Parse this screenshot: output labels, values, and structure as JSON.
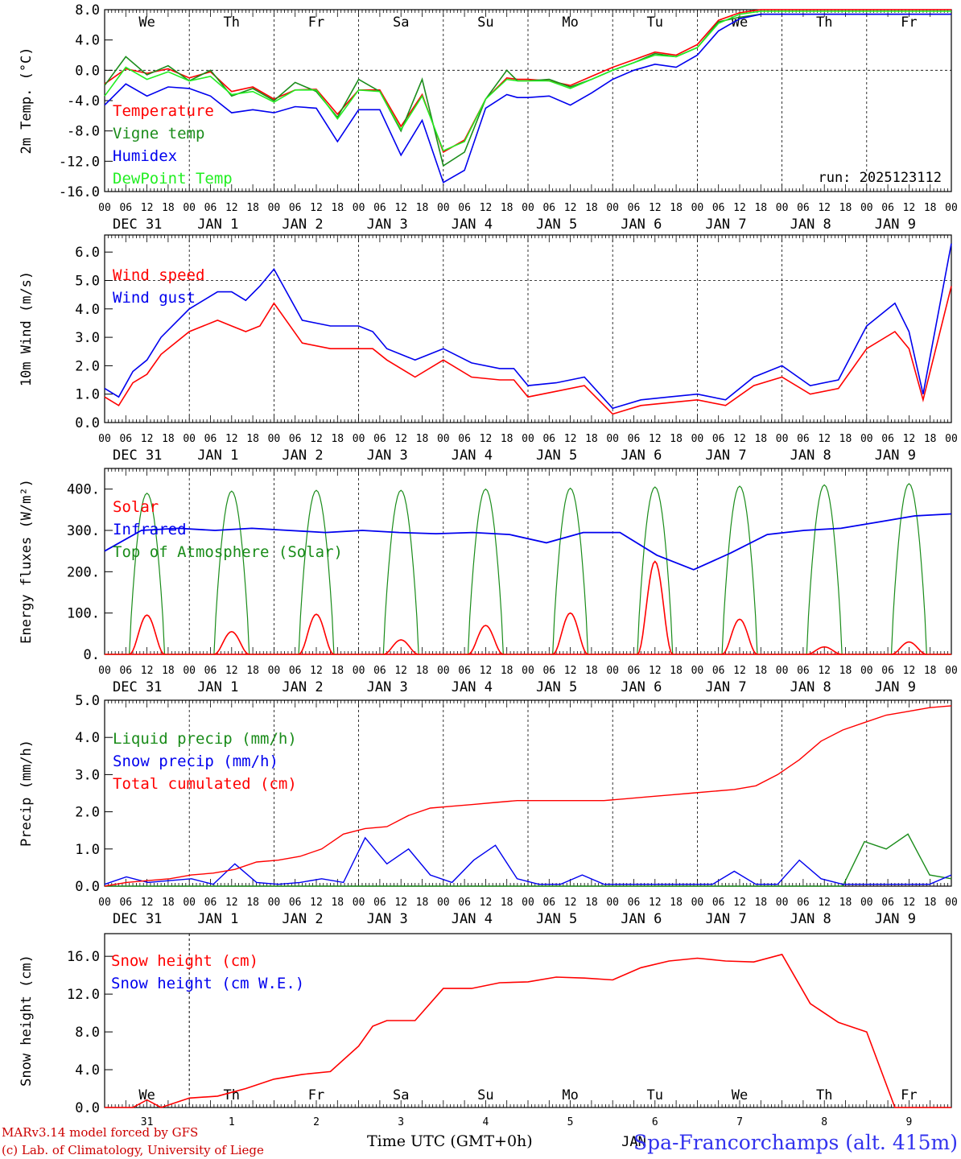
{
  "chart_data": [
    {
      "type": "line",
      "ylabel": "2m Temp. (°C)",
      "ylim": [
        -16,
        8
      ],
      "yticks": [
        "8.0",
        "4.0",
        "0.0",
        "-4.0",
        "-8.0",
        "-12.0",
        "-16.0"
      ],
      "ytick_values": [
        8,
        4,
        0,
        -4,
        -8,
        -12,
        -16
      ],
      "ref_line": 0,
      "day_names": [
        "We",
        "Th",
        "Fr",
        "Sa",
        "Su",
        "Mo",
        "Tu",
        "We",
        "Th",
        "Fr"
      ],
      "run_label": "run: 2025123112",
      "x_hours": [
        0,
        12,
        24,
        36,
        48,
        60,
        72,
        84,
        96,
        108,
        120,
        132,
        144,
        156,
        168,
        180,
        192,
        204,
        216,
        228,
        234
      ],
      "series": [
        {
          "name": "Temperature",
          "color": "#ff0000",
          "values": [
            -1.8,
            0.2,
            -0.4,
            0.2,
            -1.0,
            -0.2,
            -2.8,
            -2.2,
            -3.8,
            -2.6,
            -2.5,
            -5.8,
            -2.6,
            -2.6,
            -7.4,
            -3.2,
            -10.8,
            -9.2,
            -3.8,
            -1.0,
            -1.2
          ]
        },
        {
          "name": "Vigne temp",
          "color": "#1a8c1a",
          "values": [
            -2.0,
            1.8,
            -0.6,
            0.6,
            -1.4,
            0.0,
            -3.4,
            -2.4,
            -4.0,
            -1.6,
            -2.8,
            -6.2,
            -1.2,
            -2.8,
            -8.0,
            -1.2,
            -12.6,
            -10.8,
            -3.8,
            0.0,
            -1.4
          ]
        },
        {
          "name": "Humidex",
          "color": "#0000ee",
          "values": [
            -4.6,
            -1.8,
            -3.4,
            -2.2,
            -2.4,
            -3.4,
            -5.6,
            -5.2,
            -5.6,
            -4.8,
            -5.0,
            -9.4,
            -5.2,
            -5.2,
            -11.2,
            -6.6,
            -14.8,
            -13.2,
            -5.0,
            -3.2,
            -3.6
          ]
        },
        {
          "name": "DewPoint Temp",
          "color": "#22ee22",
          "values": [
            -3.4,
            0.4,
            -1.2,
            -0.2,
            -1.4,
            -0.8,
            -3.2,
            -2.8,
            -4.2,
            -2.6,
            -2.6,
            -6.4,
            -2.6,
            -2.8,
            -7.8,
            -3.4,
            -10.6,
            -9.4,
            -3.8,
            -1.2,
            -1.4
          ]
        }
      ],
      "x_tail_hours": [
        240,
        252,
        264,
        276,
        288,
        300,
        312,
        324,
        336,
        348,
        360,
        372,
        384,
        396,
        408,
        420,
        432,
        456,
        468,
        480
      ],
      "tail_series": [
        [
          -1.2,
          -1.4,
          -2.0,
          -0.8,
          0.4,
          1.4,
          2.4,
          2.0,
          3.4,
          6.6,
          7.6,
          8.0,
          8.0,
          8.0,
          8.0,
          8.0,
          8.0,
          8.0,
          8.0,
          8.0
        ],
        [
          -1.4,
          -1.2,
          -2.2,
          -1.2,
          0.0,
          1.0,
          2.2,
          1.8,
          3.0,
          6.4,
          7.0,
          7.4,
          7.4,
          7.4,
          7.4,
          7.4,
          7.4,
          7.4,
          7.4,
          7.4
        ],
        [
          -3.6,
          -3.4,
          -4.6,
          -3.0,
          -1.2,
          0.0,
          0.8,
          0.4,
          2.0,
          5.2,
          6.8,
          7.4,
          7.4,
          7.4,
          7.4,
          7.4,
          7.4,
          7.4,
          7.4,
          7.4
        ],
        [
          -1.4,
          -1.4,
          -2.4,
          -1.2,
          0.0,
          1.0,
          2.0,
          1.8,
          3.0,
          6.2,
          7.4,
          7.8,
          7.8,
          7.8,
          7.8,
          7.8,
          7.8,
          7.8,
          7.8,
          7.8
        ]
      ]
    },
    {
      "type": "line",
      "ylabel": "10m Wind (m/s)",
      "ylim": [
        0,
        6.6
      ],
      "yticks": [
        "6.0",
        "5.0",
        "4.0",
        "3.0",
        "2.0",
        "1.0",
        "0.0"
      ],
      "ytick_values": [
        6,
        5,
        4,
        3,
        2,
        1,
        0
      ],
      "ref_line": 5,
      "x_hours": [
        0,
        6,
        12,
        18,
        24,
        36,
        48,
        54,
        60,
        66,
        72,
        84,
        96,
        108,
        114,
        120,
        132,
        144,
        156,
        168,
        174,
        180,
        192,
        204,
        216,
        228,
        240,
        252,
        264,
        276,
        288,
        300,
        312,
        324,
        336,
        342,
        348,
        360
      ],
      "series": [
        {
          "name": "Wind speed",
          "color": "#ff0000",
          "values": [
            0.9,
            0.6,
            1.4,
            1.7,
            2.4,
            3.2,
            3.6,
            3.4,
            3.2,
            3.4,
            4.2,
            2.8,
            2.6,
            2.6,
            2.6,
            2.2,
            1.6,
            2.2,
            1.6,
            1.5,
            1.5,
            0.9,
            1.1,
            1.3,
            0.3,
            0.6,
            0.7,
            0.8,
            0.6,
            1.3,
            1.6,
            1.0,
            1.2,
            2.6,
            3.2,
            2.6,
            0.8,
            4.8
          ]
        },
        {
          "name": "Wind gust",
          "color": "#0000ee",
          "values": [
            1.2,
            0.9,
            1.8,
            2.2,
            3.0,
            4.0,
            4.6,
            4.6,
            4.3,
            4.8,
            5.4,
            3.6,
            3.4,
            3.4,
            3.2,
            2.6,
            2.2,
            2.6,
            2.1,
            1.9,
            1.9,
            1.3,
            1.4,
            1.6,
            0.5,
            0.8,
            0.9,
            1.0,
            0.8,
            1.6,
            2.0,
            1.3,
            1.5,
            3.4,
            4.2,
            3.2,
            1.0,
            6.3
          ]
        }
      ]
    },
    {
      "type": "line",
      "ylabel": "Energy fluxes (W/m²)",
      "ylim": [
        0,
        450
      ],
      "yticks": [
        "400.",
        "300.",
        "200.",
        "100.",
        "0."
      ],
      "ytick_values": [
        400,
        300,
        200,
        100,
        0
      ],
      "series": [
        {
          "name": "Solar",
          "color": "#ff0000",
          "peaks": [
            95,
            55,
            97,
            35,
            70,
            100,
            225,
            85,
            18,
            30
          ]
        },
        {
          "name": "Infrared",
          "color": "#0000ee",
          "values": [
            250,
            300,
            305,
            300,
            305,
            300,
            295,
            300,
            295,
            292,
            295,
            290,
            270,
            295,
            295,
            240,
            205,
            245,
            290,
            300,
            305,
            320,
            335,
            340
          ]
        },
        {
          "name": "Top of Atmosphere (Solar)",
          "color": "#1a8c1a",
          "peaks": [
            390,
            395,
            397,
            397,
            400,
            402,
            405,
            407,
            410,
            413
          ]
        }
      ]
    },
    {
      "type": "line",
      "ylabel": "Precip (mm/h)",
      "ylim": [
        0,
        5.0
      ],
      "yticks": [
        "5.0",
        "4.0",
        "3.0",
        "2.0",
        "1.0",
        "0.0"
      ],
      "ytick_values": [
        5,
        4,
        3,
        2,
        1,
        0
      ],
      "series": [
        {
          "name": "Liquid precip (mm/h)",
          "color": "#1a8c1a",
          "values": [
            0,
            0,
            0,
            0,
            0,
            0,
            0,
            0,
            0,
            0,
            0,
            0,
            0,
            0,
            0,
            0,
            0,
            0,
            0,
            0,
            0,
            0,
            0,
            0,
            0,
            0,
            0,
            0,
            0,
            0,
            0,
            0,
            0,
            0,
            0,
            1.2,
            1.0,
            1.4,
            0.3,
            0.2
          ]
        },
        {
          "name": "Snow precip (mm/h)",
          "color": "#0000ee",
          "values": [
            0.05,
            0.25,
            0.1,
            0.15,
            0.2,
            0.05,
            0.6,
            0.1,
            0.05,
            0.1,
            0.2,
            0.1,
            1.3,
            0.6,
            1.0,
            0.3,
            0.1,
            0.7,
            1.1,
            0.2,
            0.05,
            0.05,
            0.3,
            0.05,
            0.05,
            0.05,
            0.05,
            0.05,
            0.05,
            0.4,
            0.05,
            0.05,
            0.7,
            0.2,
            0.05,
            0.05,
            0.05,
            0.05,
            0.05,
            0.3
          ]
        },
        {
          "name": "Total cumulated (cm)",
          "color": "#ff0000",
          "values": [
            0.0,
            0.1,
            0.15,
            0.2,
            0.3,
            0.35,
            0.45,
            0.65,
            0.7,
            0.8,
            1.0,
            1.4,
            1.55,
            1.6,
            1.9,
            2.1,
            2.15,
            2.2,
            2.25,
            2.3,
            2.3,
            2.3,
            2.3,
            2.3,
            2.35,
            2.4,
            2.45,
            2.5,
            2.55,
            2.6,
            2.7,
            3.0,
            3.4,
            3.9,
            4.2,
            4.4,
            4.6,
            4.7,
            4.8,
            4.85
          ]
        }
      ]
    },
    {
      "type": "line",
      "ylabel": "Snow height (cm)",
      "ylim": [
        0,
        18.4
      ],
      "yticks": [
        "16.0",
        "12.0",
        "8.0",
        "4.0",
        "0.0"
      ],
      "ytick_values": [
        16,
        12,
        8,
        4,
        0
      ],
      "day_names": [
        "We",
        "Th",
        "Fr",
        "Sa",
        "Su",
        "Mo",
        "Tu",
        "We",
        "Th",
        "Fr"
      ],
      "day_numbers": [
        "31",
        "1",
        "2",
        "3",
        "4",
        "5",
        "6",
        "7",
        "8",
        "9"
      ],
      "month_label": "JAN",
      "x_hours": [
        0,
        12,
        18,
        24,
        36,
        48,
        54,
        60,
        72,
        84,
        96,
        108,
        114,
        120,
        132,
        144,
        156,
        168,
        180,
        192,
        204,
        216,
        228,
        240,
        252,
        264,
        276,
        288,
        300,
        312,
        324,
        336,
        348,
        360
      ],
      "series": [
        {
          "name": "Snow height (cm)",
          "color": "#ff0000",
          "values": [
            0,
            0,
            0.8,
            0,
            1.0,
            1.2,
            1.6,
            2.0,
            3.0,
            3.5,
            3.8,
            6.5,
            8.6,
            9.2,
            9.2,
            12.6,
            12.6,
            13.2,
            13.3,
            13.8,
            13.7,
            13.5,
            14.8,
            15.5,
            15.8,
            15.5,
            15.4,
            16.2,
            11.0,
            9.0,
            8.0,
            0.0,
            0.0,
            0.0
          ]
        },
        {
          "name": "Snow height (cm W.E.)",
          "color": "#0000ee",
          "values": []
        }
      ]
    }
  ],
  "x_axis": {
    "hour_labels": [
      "00",
      "06",
      "12",
      "18"
    ],
    "end_label": "00",
    "date_labels": [
      "DEC 31",
      "JAN  1",
      "JAN  2",
      "JAN  3",
      "JAN  4",
      "JAN  5",
      "JAN  6",
      "JAN  7",
      "JAN  8",
      "JAN  9"
    ],
    "xlabel": "Time UTC (GMT+0h)"
  },
  "footer": {
    "credit_line1": "MARv3.14 model forced by GFS",
    "credit_line2": "(c) Lab. of Climatology, University of Liege",
    "station": "Spa-Francorchamps (alt. 415m)"
  }
}
